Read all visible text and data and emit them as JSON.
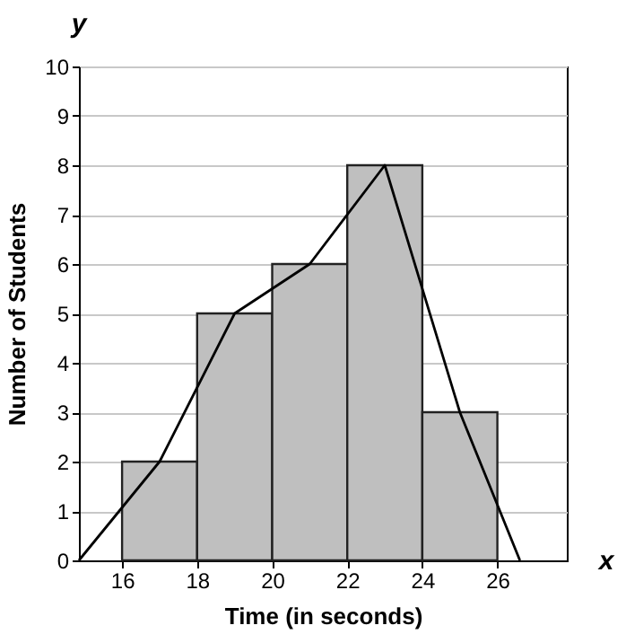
{
  "chart_data": {
    "type": "histogram",
    "xlabel": "Time (in seconds)",
    "ylabel": "Number of Students",
    "bins": [
      16,
      18,
      20,
      22,
      24,
      26
    ],
    "values": [
      2,
      5,
      6,
      8,
      3
    ],
    "color": "#bfbfbf",
    "series": [
      {
        "type": "line",
        "x": [
          14.85,
          17,
          19,
          21,
          23,
          25,
          26.6
        ],
        "values": [
          0,
          2,
          5,
          6,
          8,
          3,
          0
        ],
        "color": "#000000"
      }
    ],
    "xlim": [
      14.85,
      27.85
    ],
    "xticks": [
      16,
      18,
      20,
      22,
      24,
      26
    ],
    "ylim": [
      0,
      10
    ],
    "yticks": [
      0,
      1,
      2,
      3,
      4,
      5,
      6,
      7,
      8,
      9,
      10
    ],
    "grid": "y",
    "marker": "none",
    "line_style": "solid",
    "annotations": [
      "y",
      "x"
    ]
  }
}
